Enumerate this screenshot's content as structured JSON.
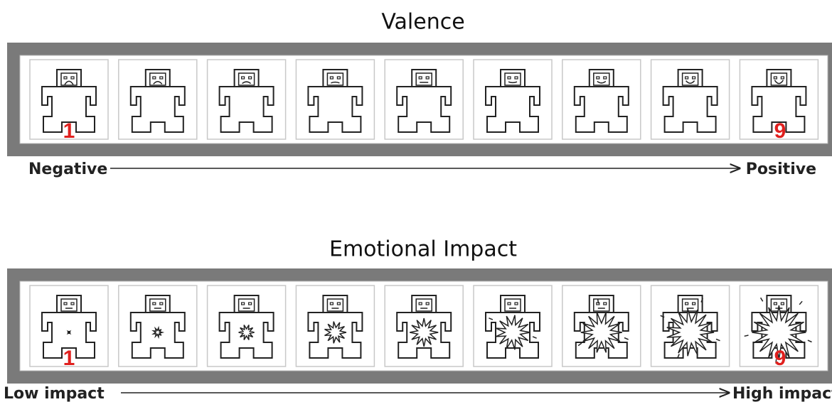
{
  "scales": [
    {
      "title": "Valence",
      "low_label": "Negative",
      "high_label": "Positive",
      "first_marker": 1,
      "last_marker": 9
    },
    {
      "title": "Emotional Impact",
      "low_label": "Low impact",
      "high_label": "High impact",
      "first_marker": 1,
      "last_marker": 9
    }
  ]
}
